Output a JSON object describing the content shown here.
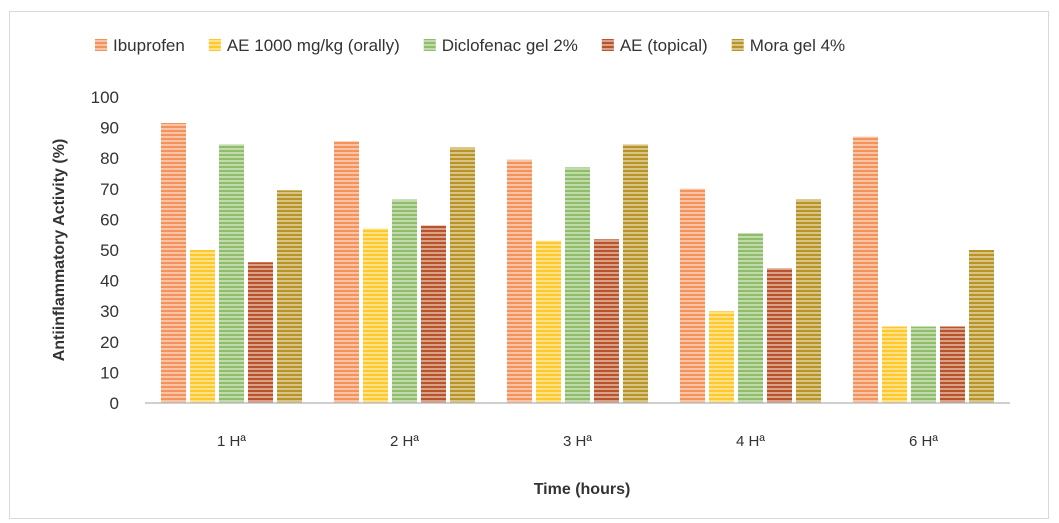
{
  "chart_data": {
    "type": "bar",
    "title": "",
    "xlabel": "Time (hours)",
    "ylabel": "Antiinflammatory Activity (%)",
    "ylim": [
      0,
      100
    ],
    "yticks": [
      "0",
      "10",
      "20",
      "30",
      "40",
      "50",
      "60",
      "70",
      "80",
      "90",
      "100"
    ],
    "categories": [
      "1 Hª",
      "2 Hª",
      "3 Hª",
      "4 Hª",
      "6 Hª"
    ],
    "legend_position": "top",
    "grid": false,
    "series": [
      {
        "name": "Ibuprofen",
        "color": "#f4925c",
        "values": [
          91.5,
          85.5,
          79.5,
          70,
          87
        ]
      },
      {
        "name": "AE 1000 mg/kg (orally)",
        "color": "#ffc829",
        "values": [
          50,
          57,
          53,
          30,
          25
        ]
      },
      {
        "name": "Diclofenac gel 2%",
        "color": "#8fbd6a",
        "values": [
          84.5,
          66.5,
          77,
          55.5,
          25
        ]
      },
      {
        "name": "AE (topical)",
        "color": "#b9542a",
        "values": [
          46,
          58,
          53.5,
          44,
          25
        ]
      },
      {
        "name": "Mora gel 4%",
        "color": "#b89325",
        "values": [
          69.5,
          83.5,
          84.5,
          66.5,
          50
        ]
      }
    ]
  }
}
